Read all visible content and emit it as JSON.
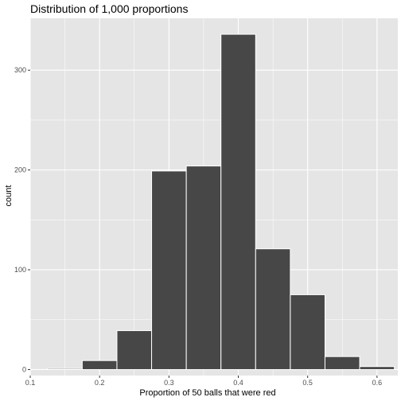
{
  "chart_data": {
    "type": "bar",
    "title": "Distribution of 1,000 proportions",
    "xlabel": "Proportion of 50 balls that were red",
    "ylabel": "count",
    "binwidth": 0.05,
    "bins": [
      {
        "x_start": 0.125,
        "x_end": 0.175,
        "count": 1
      },
      {
        "x_start": 0.175,
        "x_end": 0.225,
        "count": 9
      },
      {
        "x_start": 0.225,
        "x_end": 0.275,
        "count": 39
      },
      {
        "x_start": 0.275,
        "x_end": 0.325,
        "count": 199
      },
      {
        "x_start": 0.325,
        "x_end": 0.375,
        "count": 204
      },
      {
        "x_start": 0.375,
        "x_end": 0.425,
        "count": 336
      },
      {
        "x_start": 0.425,
        "x_end": 0.475,
        "count": 121
      },
      {
        "x_start": 0.475,
        "x_end": 0.525,
        "count": 75
      },
      {
        "x_start": 0.525,
        "x_end": 0.575,
        "count": 13
      },
      {
        "x_start": 0.575,
        "x_end": 0.625,
        "count": 3
      }
    ],
    "xlim": [
      0.1,
      0.63
    ],
    "ylim": [
      -6,
      352
    ],
    "x_ticks": [
      0.1,
      0.2,
      0.3,
      0.4,
      0.5,
      0.6
    ],
    "x_tick_labels": [
      "0.1",
      "0.2",
      "0.3",
      "0.4",
      "0.5",
      "0.6"
    ],
    "y_ticks": [
      0,
      100,
      200,
      300
    ],
    "y_tick_labels": [
      "0",
      "100",
      "200",
      "300"
    ],
    "grid": true,
    "colors": {
      "panel_background": "#e5e5e5",
      "grid_line": "#ffffff",
      "bar_fill": "#474747",
      "bar_outline": "#ffffff",
      "tick_text": "#4d4d4d",
      "tick_mark": "#333333"
    }
  }
}
